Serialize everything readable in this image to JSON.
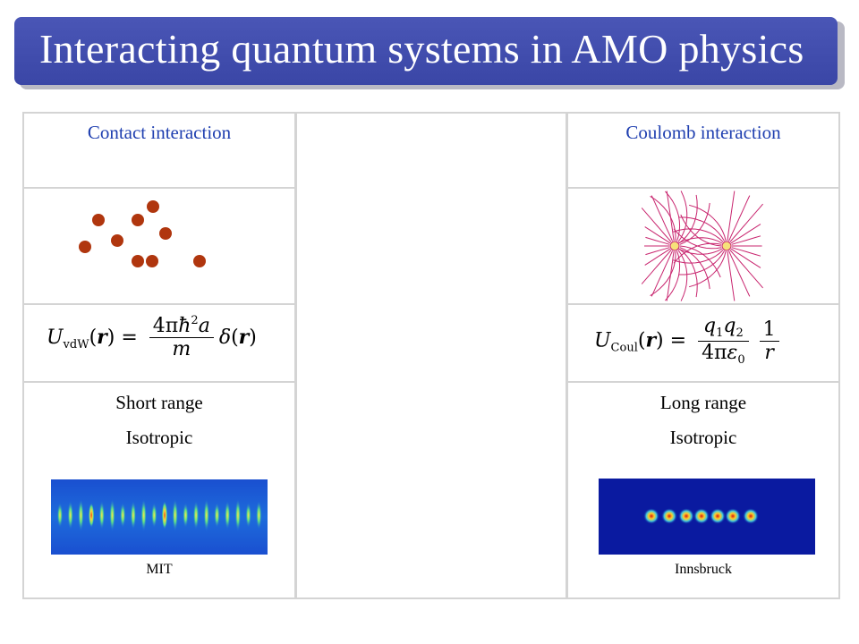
{
  "title": "Interacting quantum systems in AMO physics",
  "columns": {
    "contact": {
      "header": "Contact interaction",
      "properties": [
        "Short range",
        "Isotropic"
      ],
      "credit": "MIT"
    },
    "coulomb": {
      "header": "Coulomb interaction",
      "properties": [
        "Long range",
        "Isotropic"
      ],
      "credit": "Innsbruck"
    }
  },
  "colors": {
    "title_bar": "#3f4bab",
    "header_text": "#1f3fb0",
    "particle": "#b0360e",
    "field_lines": "#c8246e"
  },
  "icons": [
    "atom-cloud-diagram",
    "dipole-field-lines-diagram",
    "condensate-array-image",
    "ion-crystal-image"
  ]
}
